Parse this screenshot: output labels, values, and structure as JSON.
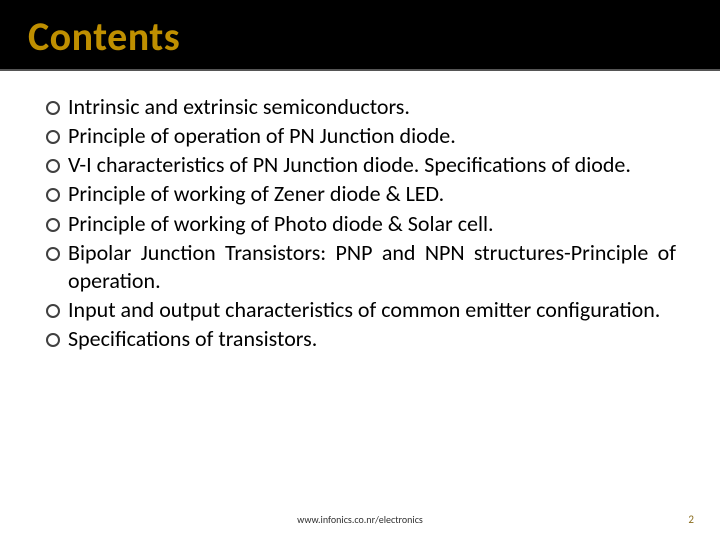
{
  "title": "Contents",
  "title_color": "#bf8f00",
  "title_bg": "#000000",
  "title_fontsize": 40,
  "body_fontsize": 22,
  "bullet_marker_color": "#404040",
  "background_color": "#ffffff",
  "bullets": [
    "Intrinsic and extrinsic semiconductors.",
    "Principle of operation of PN Junction diode.",
    "V-I characteristics of PN Junction diode. Specifications of diode.",
    "Principle of working of Zener diode & LED.",
    "Principle of working of Photo diode & Solar cell.",
    "Bipolar Junction Transistors: PNP and NPN structures-Principle of operation.",
    "Input and output characteristics of common emitter configuration.",
    "Specifications of transistors."
  ],
  "footer": "www.infonics.co.nr/electronics",
  "page_number": "2",
  "page_number_color": "#8a6d1f"
}
